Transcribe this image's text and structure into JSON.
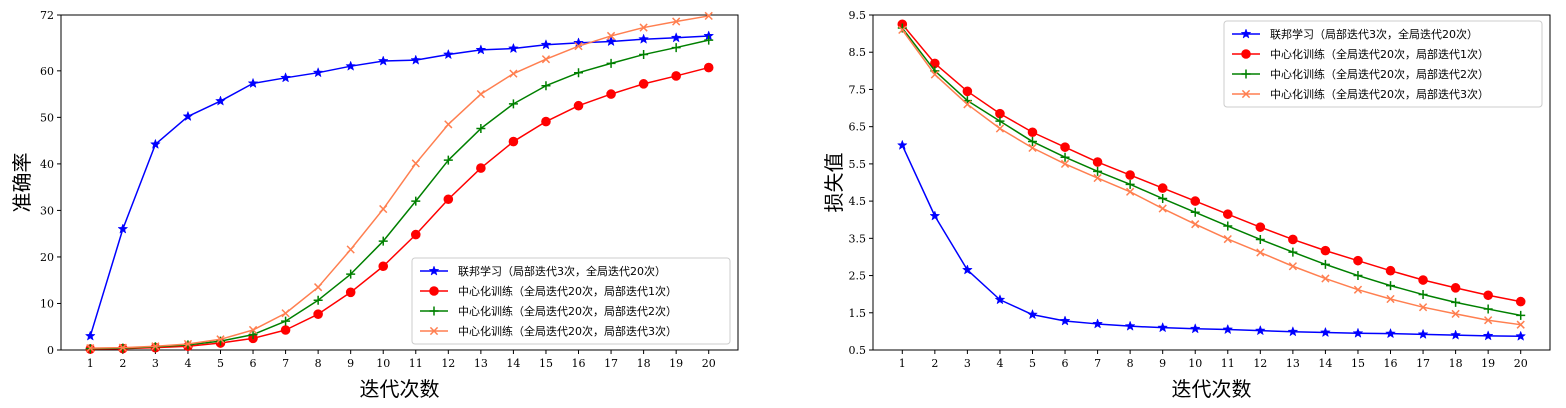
{
  "chart_data": [
    {
      "type": "line",
      "xlabel": "迭代次数",
      "ylabel": "准确率",
      "x": [
        1,
        2,
        3,
        4,
        5,
        6,
        7,
        8,
        9,
        10,
        11,
        12,
        13,
        14,
        15,
        16,
        17,
        18,
        19,
        20
      ],
      "xlim": [
        0.1,
        20.9
      ],
      "ylim": [
        0,
        72
      ],
      "yticks": [
        0,
        10,
        20,
        30,
        40,
        50,
        60,
        72
      ],
      "legend_position": "lower-right",
      "series": [
        {
          "name": "联邦学习（局部迭代3次，全局迭代20次）",
          "color": "#0000ff",
          "marker": "star",
          "values": [
            3.0,
            26.0,
            44.2,
            50.2,
            53.5,
            57.3,
            58.5,
            59.6,
            61.0,
            62.1,
            62.3,
            63.5,
            64.5,
            64.8,
            65.6,
            66.0,
            66.3,
            66.8,
            67.1,
            67.5
          ]
        },
        {
          "name": "中心化训练（全局迭代20次，局部迭代1次）",
          "color": "#ff0000",
          "marker": "circle",
          "values": [
            0.2,
            0.3,
            0.5,
            0.8,
            1.5,
            2.5,
            4.3,
            7.7,
            12.4,
            18.0,
            24.8,
            32.4,
            39.1,
            44.8,
            49.1,
            52.5,
            55.0,
            57.2,
            58.9,
            60.7
          ]
        },
        {
          "name": "中心化训练（全局迭代20次，局部迭代2次）",
          "color": "#008000",
          "marker": "plus",
          "values": [
            0.3,
            0.4,
            0.7,
            1.1,
            1.9,
            3.3,
            6.2,
            10.7,
            16.3,
            23.4,
            32.0,
            40.8,
            47.6,
            52.9,
            56.8,
            59.6,
            61.6,
            63.5,
            65.0,
            66.6
          ]
        },
        {
          "name": "中心化训练（全局迭代20次，局部迭代3次）",
          "color": "#ff7f50",
          "marker": "x",
          "values": [
            0.4,
            0.5,
            0.8,
            1.3,
            2.3,
            4.3,
            7.9,
            13.5,
            21.6,
            30.3,
            40.1,
            48.5,
            55.0,
            59.4,
            62.5,
            65.3,
            67.5,
            69.3,
            70.6,
            71.8
          ]
        }
      ]
    },
    {
      "type": "line",
      "xlabel": "迭代次数",
      "ylabel": "损失值",
      "x": [
        1,
        2,
        3,
        4,
        5,
        6,
        7,
        8,
        9,
        10,
        11,
        12,
        13,
        14,
        15,
        16,
        17,
        18,
        19,
        20
      ],
      "xlim": [
        0.1,
        20.9
      ],
      "ylim": [
        0.5,
        9.5
      ],
      "yticks": [
        0.5,
        1.5,
        2.5,
        3.5,
        4.5,
        5.5,
        6.5,
        7.5,
        8.5,
        9.5
      ],
      "legend_position": "upper-right",
      "series": [
        {
          "name": "联邦学习（局部迭代3次，全局迭代20次）",
          "color": "#0000ff",
          "marker": "star",
          "values": [
            6.0,
            4.1,
            2.65,
            1.85,
            1.45,
            1.28,
            1.2,
            1.14,
            1.1,
            1.07,
            1.05,
            1.02,
            0.99,
            0.97,
            0.95,
            0.94,
            0.92,
            0.9,
            0.88,
            0.87
          ]
        },
        {
          "name": "中心化训练（全局迭代20次，局部迭代1次）",
          "color": "#ff0000",
          "marker": "circle",
          "values": [
            9.25,
            8.2,
            7.45,
            6.85,
            6.35,
            5.95,
            5.55,
            5.2,
            4.85,
            4.5,
            4.15,
            3.8,
            3.47,
            3.17,
            2.9,
            2.63,
            2.38,
            2.17,
            1.97,
            1.8
          ]
        },
        {
          "name": "中心化训练（全局迭代20次，局部迭代2次）",
          "color": "#008000",
          "marker": "plus",
          "values": [
            9.15,
            8.0,
            7.2,
            6.65,
            6.1,
            5.68,
            5.3,
            4.95,
            4.57,
            4.2,
            3.83,
            3.47,
            3.13,
            2.8,
            2.5,
            2.23,
            1.99,
            1.78,
            1.6,
            1.43
          ]
        },
        {
          "name": "中心化训练（全局迭代20次，局部迭代3次）",
          "color": "#ff7f50",
          "marker": "x",
          "values": [
            9.1,
            7.9,
            7.1,
            6.45,
            5.93,
            5.5,
            5.12,
            4.75,
            4.3,
            3.88,
            3.48,
            3.12,
            2.75,
            2.42,
            2.12,
            1.87,
            1.65,
            1.47,
            1.3,
            1.18
          ]
        }
      ]
    }
  ]
}
